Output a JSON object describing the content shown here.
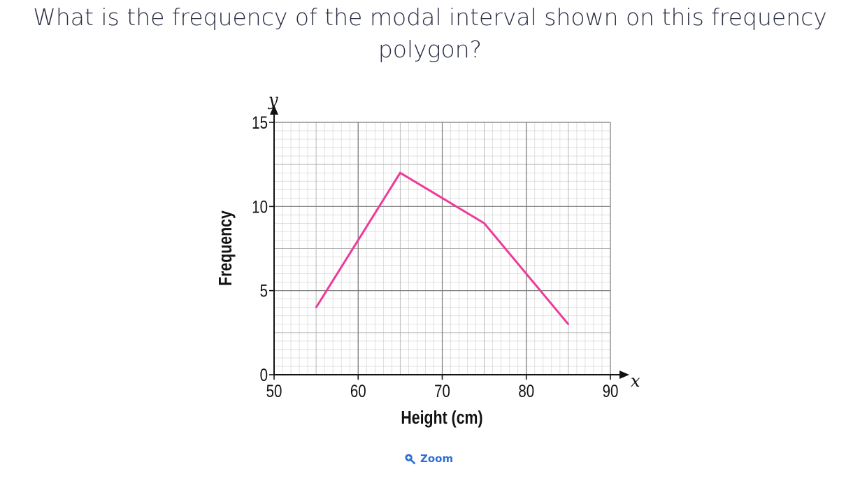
{
  "question": {
    "text": "What is the frequency of the modal interval shown on this frequency polygon?"
  },
  "zoom": {
    "label": "Zoom",
    "icon": "zoom-in-icon"
  },
  "colors": {
    "line": "#ee3a9a",
    "accent": "#2c6fd6"
  },
  "chart_data": {
    "type": "line",
    "x": [
      55,
      65,
      75,
      85
    ],
    "series": [
      {
        "values": [
          4,
          12,
          9,
          3
        ]
      }
    ],
    "xlabel": "Height (cm)",
    "ylabel": "Frequency",
    "x_axis_symbol": "x",
    "y_axis_symbol": "y",
    "xlim": [
      50,
      90
    ],
    "ylim": [
      0,
      15
    ],
    "xticks": [
      "50",
      "60",
      "70",
      "80",
      "90"
    ],
    "yticks": [
      "0",
      "5",
      "10",
      "15"
    ],
    "grid": true
  }
}
